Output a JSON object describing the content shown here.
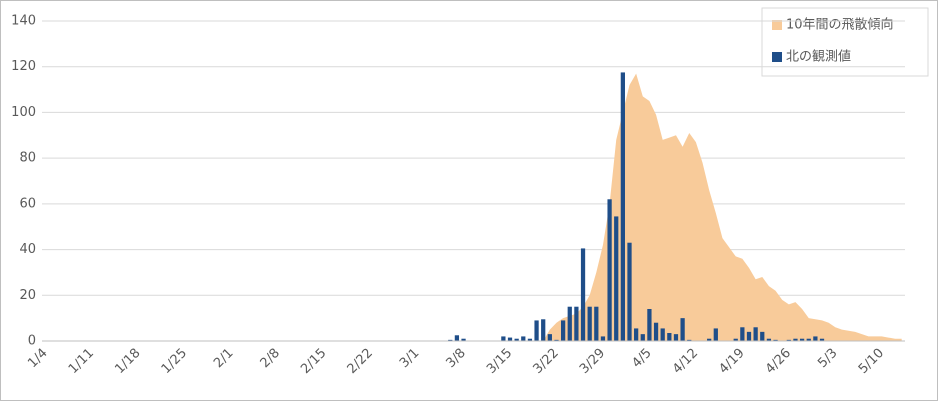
{
  "chart_data": {
    "type": "bar-area",
    "categories": [
      "1/4",
      null,
      null,
      null,
      null,
      null,
      null,
      "1/11",
      null,
      null,
      null,
      null,
      null,
      null,
      "1/18",
      null,
      null,
      null,
      null,
      null,
      null,
      "1/25",
      null,
      null,
      null,
      null,
      null,
      null,
      "2/1",
      null,
      null,
      null,
      null,
      null,
      null,
      "2/8",
      null,
      null,
      null,
      null,
      null,
      null,
      "2/15",
      null,
      null,
      null,
      null,
      null,
      null,
      "2/22",
      null,
      null,
      null,
      null,
      null,
      null,
      "3/1",
      null,
      null,
      null,
      null,
      null,
      null,
      "3/8",
      null,
      null,
      null,
      null,
      null,
      null,
      "3/15",
      null,
      null,
      null,
      null,
      null,
      null,
      "3/22",
      null,
      null,
      null,
      null,
      null,
      null,
      "3/29",
      null,
      null,
      null,
      null,
      null,
      null,
      "4/5",
      null,
      null,
      null,
      null,
      null,
      null,
      "4/12",
      null,
      null,
      null,
      null,
      null,
      null,
      "4/19",
      null,
      null,
      null,
      null,
      null,
      null,
      "4/26",
      null,
      null,
      null,
      null,
      null,
      null,
      "5/3",
      null,
      null,
      null,
      null,
      null,
      null,
      "5/10",
      null,
      null,
      null
    ],
    "series": [
      {
        "name": "10年間の飛散傾向",
        "color": "#f8cb9a",
        "kind": "area",
        "values": [
          0,
          0,
          0,
          0,
          0,
          0,
          0,
          0,
          0,
          0,
          0,
          0,
          0,
          0,
          0,
          0,
          0,
          0,
          0,
          0,
          0,
          0,
          0,
          0,
          0,
          0,
          0,
          0,
          0,
          0,
          0,
          0,
          0,
          0,
          0,
          0,
          0,
          0,
          0,
          0,
          0,
          0,
          0,
          0,
          0,
          0,
          0,
          0,
          0,
          0,
          0,
          0,
          0,
          0,
          0,
          0,
          0,
          0,
          0,
          0,
          0,
          0,
          0,
          0,
          0,
          0,
          0,
          0,
          0,
          0,
          0,
          0,
          0,
          0,
          0,
          0,
          5,
          8,
          10,
          11,
          12,
          15,
          20,
          30,
          42,
          60,
          88,
          100,
          112,
          117,
          107,
          105,
          99,
          88,
          89,
          90,
          85,
          91,
          87,
          78,
          66,
          56,
          45,
          41,
          37,
          36,
          32,
          27,
          28,
          24,
          22,
          18,
          16,
          17,
          14,
          10,
          9.5,
          9,
          8,
          6,
          5,
          4.5,
          4,
          3,
          2,
          2,
          2,
          1.5,
          1,
          1
        ]
      },
      {
        "name": "北の観測値",
        "color": "#1f4e89",
        "kind": "bar",
        "values": [
          0,
          0,
          0,
          0,
          0,
          0,
          0,
          0,
          0,
          0,
          0,
          0,
          0,
          0,
          0,
          0,
          0,
          0,
          0,
          0,
          0,
          0,
          0,
          0,
          0,
          0,
          0,
          0,
          0,
          0,
          0,
          0,
          0,
          0,
          0,
          0,
          0,
          0,
          0,
          0,
          0,
          0,
          0,
          0,
          0,
          0,
          0,
          0,
          0,
          0,
          0,
          0,
          0,
          0,
          0,
          0,
          0,
          0,
          0,
          0,
          0,
          0.5,
          2.5,
          1,
          0,
          0,
          0,
          0,
          0,
          2,
          1.5,
          1,
          2,
          1,
          9,
          9.5,
          3,
          0.5,
          9,
          15,
          15,
          40.5,
          15,
          15,
          2,
          62,
          54.5,
          117.5,
          43,
          5.5,
          3,
          14,
          8,
          5.5,
          3.5,
          3,
          10,
          0.5,
          0,
          0,
          1,
          5.5,
          0,
          0,
          1,
          6,
          4,
          6,
          4,
          1,
          0.5,
          0,
          0.5,
          1,
          1,
          1,
          2,
          1,
          0,
          0,
          0,
          0,
          0,
          0,
          0,
          0,
          0,
          0,
          0,
          0
        ]
      }
    ],
    "ylim": [
      0,
      140
    ],
    "yticks": [
      0,
      20,
      40,
      60,
      80,
      100,
      120,
      140
    ],
    "grid": true,
    "legend": "top-right"
  }
}
